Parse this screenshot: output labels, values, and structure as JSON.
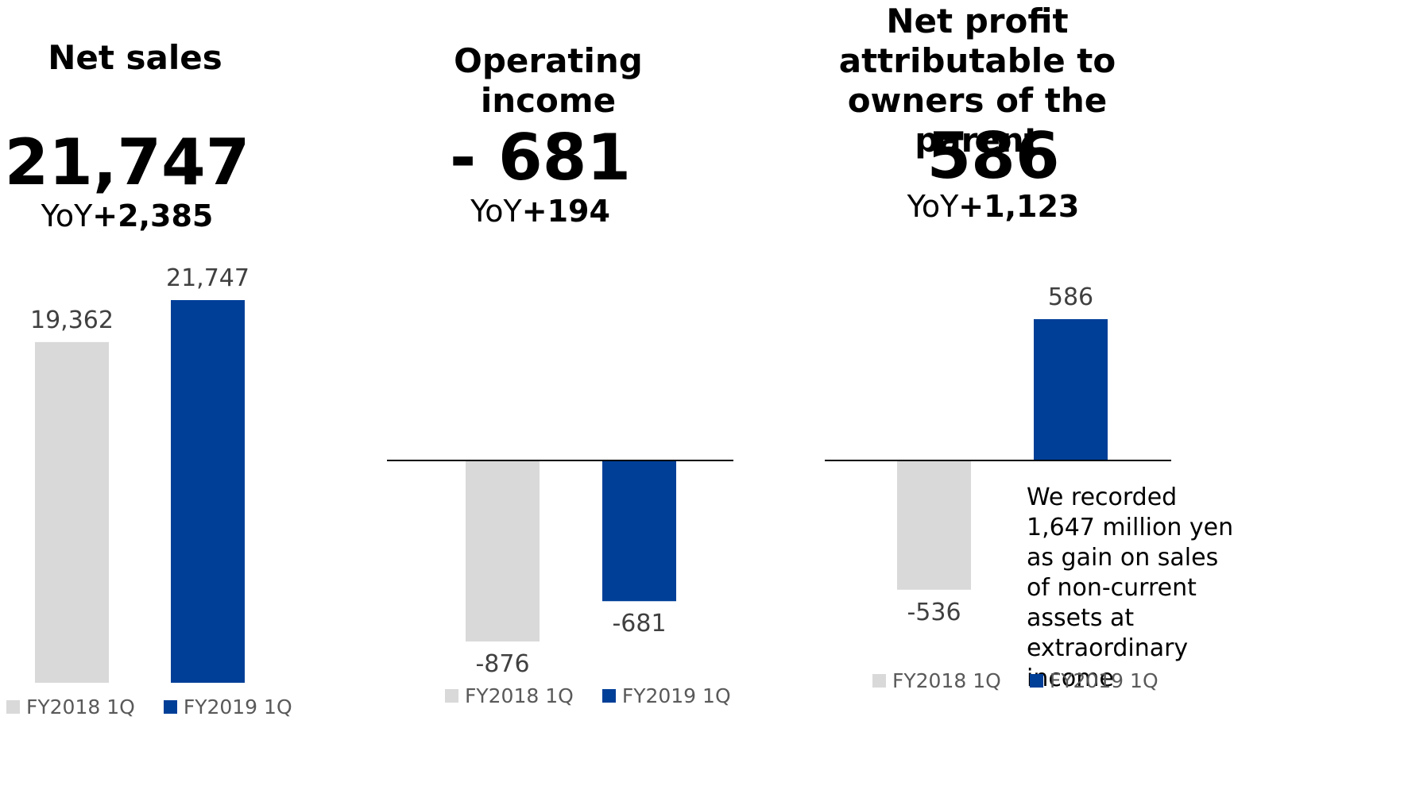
{
  "colors": {
    "fy2018": "#d9d9d9",
    "fy2019": "#003f98",
    "axis": "#000000",
    "label": "#404040"
  },
  "legend": {
    "fy2018": "FY2018 1Q",
    "fy2019": "FY2019 1Q"
  },
  "panels": [
    {
      "title": "Net sales",
      "headline": "21,747",
      "yoy_prefix": "YoY",
      "yoy_value": "+2,385"
    },
    {
      "title": "Operating income",
      "headline": "- 681",
      "yoy_prefix": "YoY",
      "yoy_value": "+194"
    },
    {
      "title": "Net profit attributable to owners of the parent",
      "headline": "586",
      "yoy_prefix": "YoY",
      "yoy_value": "+1,123"
    }
  ],
  "note": "We recorded 1,647 million yen as gain on sales of non-current assets at extraordinary income",
  "chart_data": [
    {
      "type": "bar",
      "title": "Net sales",
      "categories": [
        "FY2018 1Q",
        "FY2019 1Q"
      ],
      "values": [
        19362,
        21747
      ],
      "labels": [
        "19,362",
        "21,747"
      ]
    },
    {
      "type": "bar",
      "title": "Operating income",
      "categories": [
        "FY2018 1Q",
        "FY2019 1Q"
      ],
      "values": [
        -876,
        -681
      ],
      "labels": [
        "-876",
        "-681"
      ]
    },
    {
      "type": "bar",
      "title": "Net profit attributable to owners of the parent",
      "categories": [
        "FY2018 1Q",
        "FY2019 1Q"
      ],
      "values": [
        -536,
        586
      ],
      "labels": [
        "-536",
        "586"
      ]
    }
  ]
}
